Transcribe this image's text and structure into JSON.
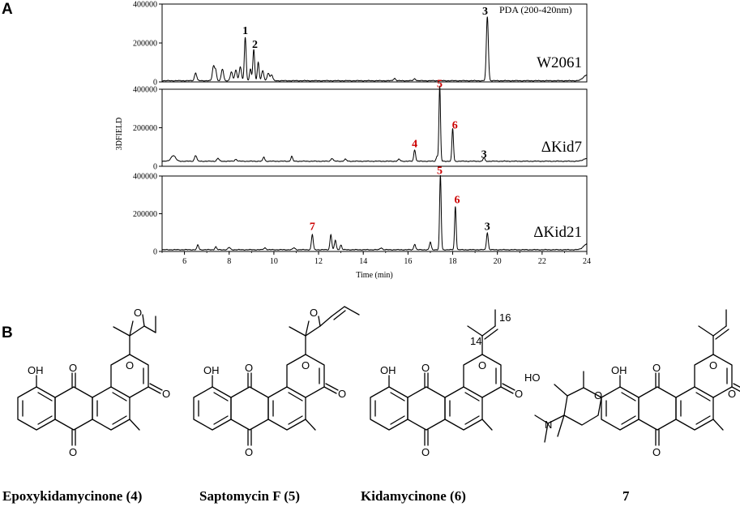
{
  "panels": {
    "a": "A",
    "b": "B"
  },
  "chart_data": {
    "type": "line",
    "xlabel": "Time (min)",
    "ylabel": "3DFIELD",
    "detector": "PDA (200-420nm)",
    "xlim": [
      5,
      24
    ],
    "ylim": [
      0,
      400000
    ],
    "x_ticks": [
      "6",
      "8",
      "10",
      "12",
      "14",
      "16",
      "18",
      "20",
      "22",
      "24"
    ],
    "y_ticks": [
      "0",
      "200000",
      "400000"
    ],
    "traces": [
      {
        "name": "W2061",
        "baseline": 5000,
        "peaks": [
          {
            "x": 6.5,
            "h": 40000,
            "w": 0.05
          },
          {
            "x": 7.3,
            "h": 75000,
            "w": 0.05
          },
          {
            "x": 7.4,
            "h": 50000,
            "w": 0.04
          },
          {
            "x": 7.7,
            "h": 60000,
            "w": 0.05
          },
          {
            "x": 8.1,
            "h": 45000,
            "w": 0.05
          },
          {
            "x": 8.3,
            "h": 55000,
            "w": 0.05
          },
          {
            "x": 8.5,
            "h": 70000,
            "w": 0.05
          },
          {
            "x": 8.72,
            "h": 225000,
            "w": 0.04
          },
          {
            "x": 8.95,
            "h": 60000,
            "w": 0.04
          },
          {
            "x": 9.1,
            "h": 160000,
            "w": 0.04
          },
          {
            "x": 9.3,
            "h": 95000,
            "w": 0.04
          },
          {
            "x": 9.5,
            "h": 50000,
            "w": 0.05
          },
          {
            "x": 9.75,
            "h": 40000,
            "w": 0.05
          },
          {
            "x": 9.9,
            "h": 30000,
            "w": 0.05
          },
          {
            "x": 15.4,
            "h": 12000,
            "w": 0.05
          },
          {
            "x": 16.3,
            "h": 10000,
            "w": 0.05
          },
          {
            "x": 19.55,
            "h": 330000,
            "w": 0.045
          },
          {
            "x": 24.0,
            "h": 30000,
            "w": 0.15
          }
        ],
        "labels": [
          {
            "text": "1",
            "x": 8.72,
            "y": 245000,
            "color": "#000000"
          },
          {
            "text": "2",
            "x": 9.15,
            "y": 175000,
            "color": "#000000"
          },
          {
            "text": "3",
            "x": 19.45,
            "y": 345000,
            "color": "#000000"
          }
        ]
      },
      {
        "name": "ΔKid7",
        "baseline": 25000,
        "peaks": [
          {
            "x": 5.5,
            "h": 30000,
            "w": 0.1
          },
          {
            "x": 6.5,
            "h": 30000,
            "w": 0.05
          },
          {
            "x": 7.5,
            "h": 15000,
            "w": 0.05
          },
          {
            "x": 8.3,
            "h": 10000,
            "w": 0.05
          },
          {
            "x": 9.55,
            "h": 22000,
            "w": 0.04
          },
          {
            "x": 10.8,
            "h": 25000,
            "w": 0.04
          },
          {
            "x": 12.6,
            "h": 15000,
            "w": 0.05
          },
          {
            "x": 13.2,
            "h": 10000,
            "w": 0.05
          },
          {
            "x": 15.6,
            "h": 10000,
            "w": 0.05
          },
          {
            "x": 16.3,
            "h": 60000,
            "w": 0.04
          },
          {
            "x": 17.3,
            "h": 25000,
            "w": 0.04
          },
          {
            "x": 17.42,
            "h": 390000,
            "w": 0.035
          },
          {
            "x": 18.0,
            "h": 170000,
            "w": 0.035
          },
          {
            "x": 19.4,
            "h": 18000,
            "w": 0.04
          },
          {
            "x": 24.0,
            "h": 15000,
            "w": 0.15
          }
        ],
        "labels": [
          {
            "text": "4",
            "x": 16.3,
            "y": 100000,
            "color": "#cc0000"
          },
          {
            "text": "5",
            "x": 17.42,
            "y": 410000,
            "color": "#cc0000"
          },
          {
            "text": "6",
            "x": 18.1,
            "y": 195000,
            "color": "#cc0000"
          },
          {
            "text": "3",
            "x": 19.4,
            "y": 45000,
            "color": "#000000"
          }
        ]
      },
      {
        "name": "ΔKid21",
        "baseline": 8000,
        "peaks": [
          {
            "x": 6.6,
            "h": 25000,
            "w": 0.04
          },
          {
            "x": 7.4,
            "h": 15000,
            "w": 0.04
          },
          {
            "x": 8.0,
            "h": 12000,
            "w": 0.05
          },
          {
            "x": 9.6,
            "h": 10000,
            "w": 0.05
          },
          {
            "x": 10.9,
            "h": 10000,
            "w": 0.05
          },
          {
            "x": 11.72,
            "h": 80000,
            "w": 0.04
          },
          {
            "x": 12.55,
            "h": 80000,
            "w": 0.04
          },
          {
            "x": 12.75,
            "h": 50000,
            "w": 0.04
          },
          {
            "x": 13.0,
            "h": 25000,
            "w": 0.04
          },
          {
            "x": 14.8,
            "h": 10000,
            "w": 0.05
          },
          {
            "x": 16.3,
            "h": 30000,
            "w": 0.04
          },
          {
            "x": 17.0,
            "h": 40000,
            "w": 0.04
          },
          {
            "x": 17.45,
            "h": 395000,
            "w": 0.035
          },
          {
            "x": 18.12,
            "h": 230000,
            "w": 0.035
          },
          {
            "x": 19.55,
            "h": 90000,
            "w": 0.04
          },
          {
            "x": 24.0,
            "h": 30000,
            "w": 0.15
          }
        ],
        "labels": [
          {
            "text": "7",
            "x": 11.72,
            "y": 115000,
            "color": "#cc0000"
          },
          {
            "text": "5",
            "x": 17.42,
            "y": 410000,
            "color": "#cc0000"
          },
          {
            "text": "6",
            "x": 18.2,
            "y": 255000,
            "color": "#cc0000"
          },
          {
            "text": "3",
            "x": 19.55,
            "y": 115000,
            "color": "#000000"
          }
        ]
      }
    ]
  },
  "structures": {
    "atoms": {
      "oh": "OH",
      "o": "O",
      "ho": "HO",
      "n": "N",
      "c14": "14",
      "c16": "16"
    },
    "names": [
      "Epoxykidamycinone (4)",
      "Saptomycin F (5)",
      "Kidamycinone (6)",
      "7"
    ]
  }
}
